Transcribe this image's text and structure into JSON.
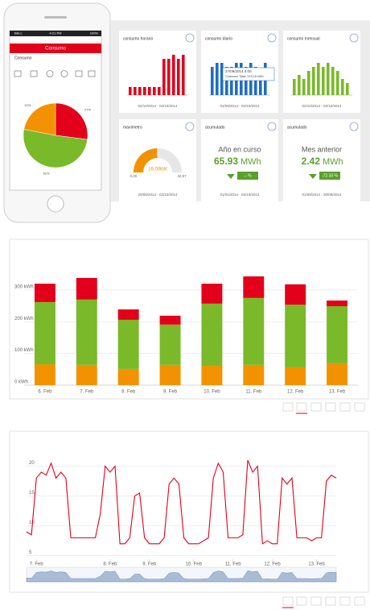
{
  "phone": {
    "carrier": "BELL",
    "time": "4:21 PM",
    "battery": "100%",
    "header": "Consumo",
    "subheader": "Consumo",
    "pie": {
      "type": "pie",
      "slices": [
        {
          "name": "red",
          "color": "#e2001a",
          "value": 27,
          "value_label": "27%"
        },
        {
          "name": "green",
          "color": "#7ab929",
          "value": 51,
          "value_label": "51%"
        },
        {
          "name": "orange",
          "color": "#f39200",
          "value": 22,
          "value_label": "22%"
        }
      ]
    }
  },
  "dashboard": {
    "horario": {
      "title": "consumo horario",
      "dates": "02/10/2014 - 02/10/2014",
      "color": "#e2001a",
      "max": 10,
      "values": [
        2,
        2,
        2,
        2,
        2,
        2,
        2,
        9,
        9,
        10,
        9,
        10
      ]
    },
    "diario": {
      "title": "consumo diario",
      "dates": "01/09/2014 - 02/10/2014",
      "color": "#1f6fbf",
      "max": 10,
      "values": [
        7,
        8,
        8,
        7,
        7,
        8,
        8,
        7,
        8,
        7,
        6,
        8
      ],
      "tooltip_date": "27/09/2014 0:00",
      "tooltip_text": "Consumo Total: 219,15 kWh"
    },
    "mensual": {
      "title": "consumo mensual",
      "dates": "02/10/2013 - 02/10/2014",
      "color": "#7ab929",
      "max": 10,
      "values": [
        4,
        5,
        4,
        6,
        7,
        8,
        7,
        8,
        7,
        6,
        4,
        3
      ]
    },
    "maximetro": {
      "title": "maxímetro",
      "dates": "20/09/2014 - 02/10/2014",
      "value": 16,
      "max": 32.57,
      "label": "16,00kW",
      "min_label": "0,00",
      "max_label": "32,57"
    },
    "acumulado1": {
      "title": "acumulado",
      "period": "Año en curso",
      "amount": "65.93",
      "unit": "MWh",
      "change": "-- %",
      "dates": "01/01/2014 - 02/10/2014"
    },
    "acumulado2": {
      "title": "acumulado",
      "period": "Mes anterior",
      "amount": "2.42",
      "unit": "MWh",
      "change": "-72.33 %",
      "dates": "01/09/2014 - 30/09/2014"
    }
  },
  "chart_data": [
    {
      "type": "bar",
      "stacked": true,
      "grid": true,
      "categories": [
        "6. Feb",
        "7. Feb",
        "8. Feb",
        "9. Feb",
        "10. Feb",
        "11. Feb",
        "12. Feb",
        "13. Feb"
      ],
      "series": [
        {
          "name": "orange",
          "color": "#f39200",
          "values": [
            66,
            64,
            51,
            64,
            61,
            64,
            56,
            69
          ]
        },
        {
          "name": "green",
          "color": "#7ab929",
          "values": [
            196,
            206,
            155,
            127,
            196,
            211,
            198,
            180
          ]
        },
        {
          "name": "red",
          "color": "#e2001a",
          "values": [
            58,
            68,
            33,
            28,
            63,
            68,
            64,
            18
          ]
        }
      ],
      "ylim": [
        0,
        376
      ],
      "yticks": [
        {
          "value": 0,
          "label": "0 kWh"
        },
        {
          "value": 100,
          "label": "100 kWh"
        },
        {
          "value": 200,
          "label": "200 kWh"
        },
        {
          "value": 300,
          "label": "300 kWh"
        }
      ]
    },
    {
      "type": "line",
      "grid": true,
      "color": "#e2001a",
      "categories": [
        null,
        null,
        "7. Feb",
        null,
        null,
        null,
        null,
        null,
        null,
        null,
        null,
        null,
        null,
        null,
        null,
        null,
        null,
        "8. Feb",
        null,
        null,
        null,
        null,
        null,
        null,
        null,
        "9. Feb",
        null,
        null,
        null,
        null,
        null,
        null,
        null,
        null,
        "10. Feb",
        null,
        null,
        null,
        null,
        null,
        null,
        null,
        "11. Feb",
        null,
        null,
        null,
        null,
        null,
        null,
        null,
        "12. Feb",
        null,
        null,
        null,
        null,
        null,
        null,
        null,
        null,
        "13. Feb",
        null,
        null,
        null,
        null
      ],
      "values": [
        9,
        8.5,
        18,
        19,
        18.5,
        20.5,
        18,
        19,
        18,
        8,
        8,
        8,
        8,
        8,
        8,
        12,
        20,
        19,
        20,
        7,
        7,
        8,
        15,
        15.5,
        8,
        7,
        7,
        7,
        8,
        17,
        18,
        17,
        8,
        7,
        7,
        7,
        7.5,
        8,
        18,
        20.5,
        19,
        8,
        8,
        8,
        8.5,
        21,
        19,
        20,
        7,
        7.5,
        7,
        7,
        18,
        17,
        18,
        8,
        8,
        8,
        7.5,
        8,
        8,
        17.5,
        18.5,
        18
      ],
      "ylim": [
        4,
        22.5
      ],
      "yticks": [
        5,
        10,
        15,
        20
      ]
    }
  ]
}
